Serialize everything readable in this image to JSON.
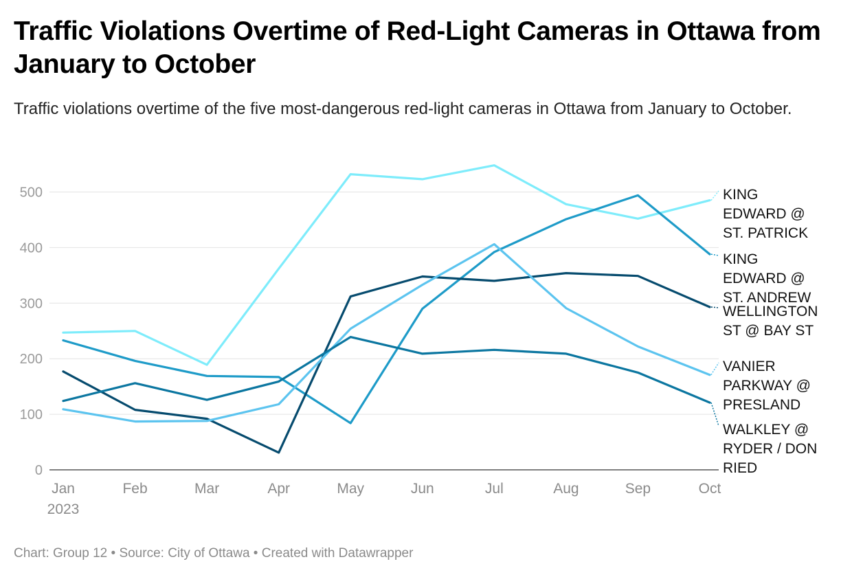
{
  "title": "Traffic Violations Overtime of Red-Light Cameras in Ottawa from January to October",
  "subtitle": "Traffic violations overtime of the five most-dangerous red-light cameras in Ottawa from January to October.",
  "footer": "Chart: Group 12 • Source: City of Ottawa • Created with Datawrapper",
  "chart_data": {
    "type": "line",
    "categories": [
      "Jan",
      "Feb",
      "Mar",
      "Apr",
      "May",
      "Jun",
      "Jul",
      "Aug",
      "Sep",
      "Oct"
    ],
    "x_year_label": "2023",
    "ylim": [
      0,
      550
    ],
    "yticks": [
      0,
      100,
      200,
      300,
      400,
      500
    ],
    "grid": true,
    "legend": "direct labels at right end of lines",
    "series": [
      {
        "name": "KING EDWARD @ ST. PATRICK",
        "color": "#7eecfb",
        "values": [
          247,
          250,
          189,
          362,
          532,
          523,
          548,
          478,
          452,
          485
        ]
      },
      {
        "name": "KING EDWARD @ ST. ANDREW",
        "color": "#1e9bc8",
        "values": [
          233,
          196,
          169,
          167,
          84,
          290,
          392,
          451,
          494,
          388
        ]
      },
      {
        "name": "WELLINGTON ST @ BAY ST",
        "color": "#064b6e",
        "values": [
          177,
          108,
          92,
          31,
          312,
          348,
          340,
          354,
          349,
          293
        ]
      },
      {
        "name": "VANIER PARKWAY @ PRESLAND",
        "color": "#5cc4ef",
        "values": [
          109,
          87,
          88,
          118,
          254,
          333,
          406,
          291,
          222,
          171
        ]
      },
      {
        "name": "WALKLEY @ RYDER / DON RIED",
        "color": "#0b76a0",
        "values": [
          124,
          156,
          126,
          159,
          239,
          209,
          216,
          209,
          175,
          121
        ]
      }
    ]
  }
}
